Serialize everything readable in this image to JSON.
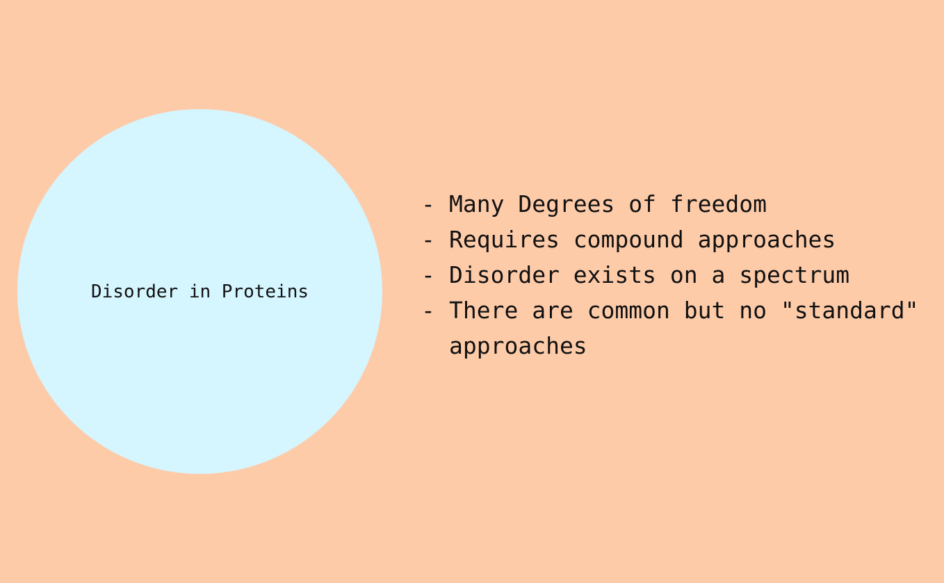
{
  "colors": {
    "background": "#FECBA9",
    "circle_fill": "#D5F5FF",
    "text": "#111111"
  },
  "circle": {
    "label": "Disorder in Proteins"
  },
  "bullets": {
    "marker": "-",
    "items": [
      "Many Degrees of freedom",
      "Requires compound approaches",
      "Disorder exists on a spectrum",
      "There are common but no \"standard\" approaches"
    ]
  }
}
